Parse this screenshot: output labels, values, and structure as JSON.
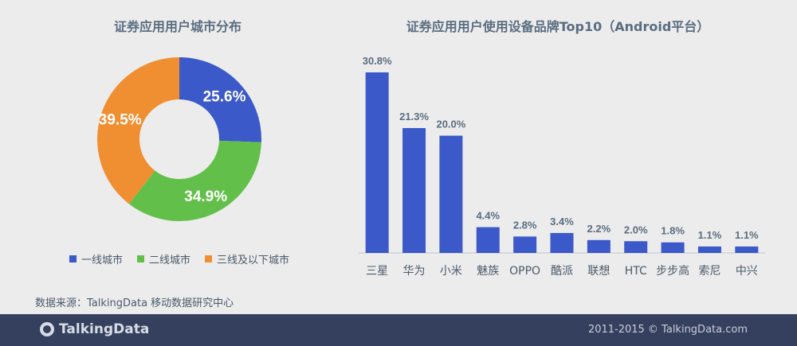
{
  "footer": {
    "logo_text": "TalkingData",
    "copyright": "2011-2015 © TalkingData.com"
  },
  "source_text": "数据来源：TalkingData 移动数据研究中心",
  "chart_data": [
    {
      "type": "pie",
      "donut": true,
      "title": "证券应用用户城市分布",
      "categories": [
        "一线城市",
        "二线城市",
        "三线及以下城市"
      ],
      "values": [
        25.6,
        34.9,
        39.5
      ],
      "labels": [
        "25.6%",
        "34.9%",
        "39.5%"
      ],
      "colors": [
        "#3b59c8",
        "#62c04a",
        "#f08f32"
      ],
      "legend": "bottom"
    },
    {
      "type": "bar",
      "title": "证券应用用户使用设备品牌Top10（Android平台）",
      "categories": [
        "三星",
        "华为",
        "小米",
        "魅族",
        "OPPO",
        "酷派",
        "联想",
        "HTC",
        "步步高",
        "索尼",
        "中兴"
      ],
      "values": [
        30.8,
        21.3,
        20.0,
        4.4,
        2.8,
        3.4,
        2.2,
        2.0,
        1.8,
        1.1,
        1.1
      ],
      "labels": [
        "30.8%",
        "21.3%",
        "20.0%",
        "4.4%",
        "2.8%",
        "3.4%",
        "2.2%",
        "2.0%",
        "1.8%",
        "1.1%",
        "1.1%"
      ],
      "color": "#3b59c8",
      "ylim": [
        0,
        30.8
      ]
    }
  ]
}
